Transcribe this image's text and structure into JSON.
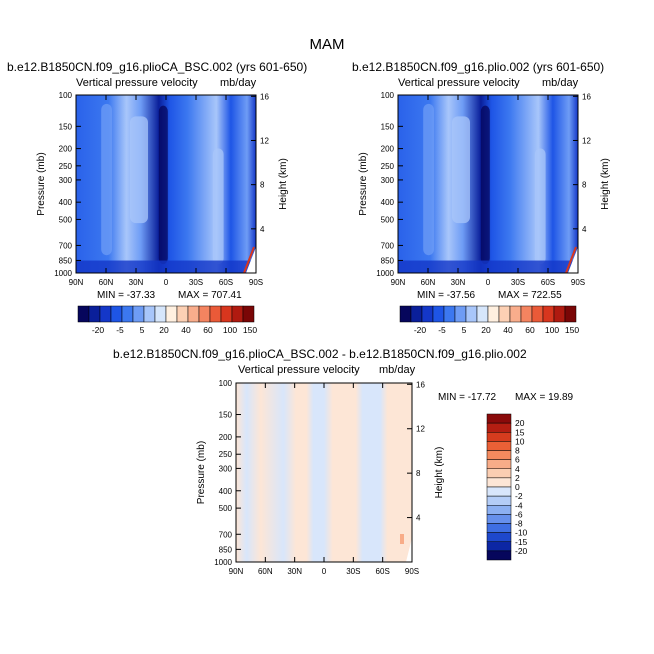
{
  "main_title": "MAM",
  "panels": [
    {
      "case_title": "b.e12.B1850CN.f09_g16.plioCA_BSC.002 (yrs 601-650)",
      "subtitle_left": "Vertical pressure velocity",
      "subtitle_right": "mb/day",
      "min_label": "MIN = -37.33",
      "max_label": "MAX = 707.41",
      "y_left_label": "Pressure (mb)",
      "y_right_label": "Height (km)"
    },
    {
      "case_title": "b.e12.B1850CN.f09_g16.plio.002 (yrs 601-650)",
      "subtitle_left": "Vertical pressure velocity",
      "subtitle_right": "mb/day",
      "min_label": "MIN = -37.56",
      "max_label": "MAX = 722.55",
      "y_left_label": "Pressure (mb)",
      "y_right_label": "Height (km)"
    },
    {
      "case_title": "b.e12.B1850CN.f09_g16.plioCA_BSC.002 - b.e12.B1850CN.f09_g16.plio.002",
      "subtitle_left": "Vertical pressure velocity",
      "subtitle_right": "mb/day",
      "min_label": "MIN = -17.72",
      "max_label": "MAX = 19.89",
      "y_left_label": "Pressure (mb)",
      "y_right_label": "Height (km)"
    }
  ],
  "chart_data": [
    {
      "type": "heatmap",
      "x_tick_labels": [
        "90N",
        "60N",
        "30N",
        "0",
        "30S",
        "60S",
        "90S"
      ],
      "y_tick_labels": [
        "100",
        "150",
        "200",
        "250",
        "300",
        "400",
        "500",
        "700",
        "850",
        "1000"
      ],
      "y2_tick_labels": [
        "4",
        "8",
        "12",
        "16"
      ],
      "colorbar_labels": [
        "-20",
        "-5",
        "5",
        "20",
        "40",
        "60",
        "100",
        "150"
      ],
      "colorbar_colors": [
        "#06065c",
        "#0a1f9a",
        "#1437c8",
        "#1e55e6",
        "#3c78f0",
        "#6e9cf5",
        "#a8c6fa",
        "#d6e6fb",
        "#fff0e0",
        "#fcd0b4",
        "#f9ad8c",
        "#f48460",
        "#ea5a38",
        "#d8361e",
        "#b01a10",
        "#7a0606"
      ],
      "ylim": [
        1000,
        100
      ]
    },
    {
      "type": "heatmap",
      "x_tick_labels": [
        "90N",
        "60N",
        "30N",
        "0",
        "30S",
        "60S",
        "90S"
      ],
      "y_tick_labels": [
        "100",
        "150",
        "200",
        "250",
        "300",
        "400",
        "500",
        "700",
        "850",
        "1000"
      ],
      "y2_tick_labels": [
        "4",
        "8",
        "12",
        "16"
      ],
      "colorbar_labels": [
        "-20",
        "-5",
        "5",
        "20",
        "40",
        "60",
        "100",
        "150"
      ],
      "colorbar_colors": [
        "#06065c",
        "#0a1f9a",
        "#1437c8",
        "#1e55e6",
        "#3c78f0",
        "#6e9cf5",
        "#a8c6fa",
        "#d6e6fb",
        "#fff0e0",
        "#fcd0b4",
        "#f9ad8c",
        "#f48460",
        "#ea5a38",
        "#d8361e",
        "#b01a10",
        "#7a0606"
      ],
      "ylim": [
        1000,
        100
      ]
    },
    {
      "type": "heatmap",
      "x_tick_labels": [
        "90N",
        "60N",
        "30N",
        "0",
        "30S",
        "60S",
        "90S"
      ],
      "y_tick_labels": [
        "100",
        "150",
        "200",
        "250",
        "300",
        "400",
        "500",
        "700",
        "850",
        "1000"
      ],
      "y2_tick_labels": [
        "4",
        "8",
        "12",
        "16"
      ],
      "colorbar_labels": [
        "20",
        "15",
        "10",
        "8",
        "6",
        "4",
        "2",
        "0",
        "-2",
        "-4",
        "-6",
        "-8",
        "-10",
        "-15",
        "-20"
      ],
      "colorbar_colors": [
        "#8a0a0a",
        "#b41e12",
        "#d63c1e",
        "#ea6036",
        "#f48a5e",
        "#f8ac88",
        "#fbceb2",
        "#fde6d6",
        "#d8e6fb",
        "#b4cdf7",
        "#8cb0f2",
        "#6690ec",
        "#3e6ee2",
        "#1e48cc",
        "#0c26a4",
        "#06065c"
      ],
      "ylim": [
        1000,
        100
      ]
    }
  ]
}
